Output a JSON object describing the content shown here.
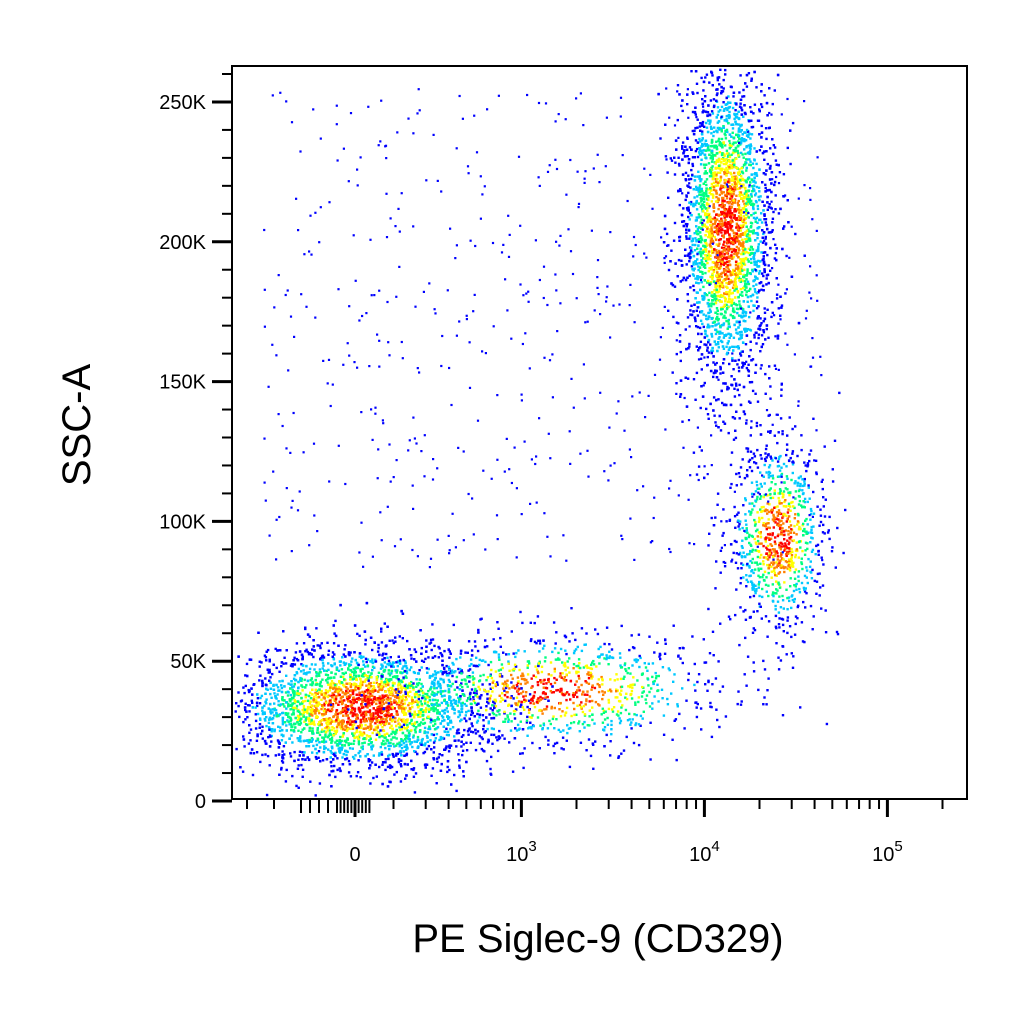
{
  "chart_data": {
    "type": "scatter",
    "subtype": "flow-cytometry-density-dot-plot",
    "xlabel": "PE Siglec-9 (CD329)",
    "ylabel": "SSC-A",
    "x_scale": "biexponential",
    "y_scale": "linear",
    "xlim": [
      -400,
      200000
    ],
    "ylim": [
      0,
      262144
    ],
    "x_ticks": [
      {
        "value": 0,
        "label": "0",
        "exp": ""
      },
      {
        "value": 1000,
        "label": "10",
        "exp": "3"
      },
      {
        "value": 10000,
        "label": "10",
        "exp": "4"
      },
      {
        "value": 100000,
        "label": "10",
        "exp": "5"
      }
    ],
    "y_ticks": [
      {
        "value": 0,
        "label": "0"
      },
      {
        "value": 50000,
        "label": "50K"
      },
      {
        "value": 100000,
        "label": "100K"
      },
      {
        "value": 150000,
        "label": "150K"
      },
      {
        "value": 200000,
        "label": "200K"
      },
      {
        "value": 250000,
        "label": "250K"
      }
    ],
    "grid": false,
    "legend": "none",
    "colormap": [
      "#0000ff",
      "#00c8ff",
      "#00ff80",
      "#ffff00",
      "#ff8000",
      "#ff0000"
    ],
    "populations": [
      {
        "name": "PE-negative low SSC",
        "x_center": 20,
        "y_center": 34000,
        "x_spread": 0.35,
        "y_spread": 11000,
        "events": 3600
      },
      {
        "name": "PE-intermediate low SSC",
        "x_center": 1500,
        "y_center": 40000,
        "x_spread": 0.45,
        "y_spread": 10000,
        "events": 1000
      },
      {
        "name": "PE-high high SSC",
        "x_center": 13000,
        "y_center": 205000,
        "x_spread": 0.12,
        "y_spread": 28000,
        "events": 3600
      },
      {
        "name": "PE-high mid SSC",
        "x_center": 25000,
        "y_center": 95000,
        "x_spread": 0.13,
        "y_spread": 17000,
        "events": 900
      }
    ]
  }
}
